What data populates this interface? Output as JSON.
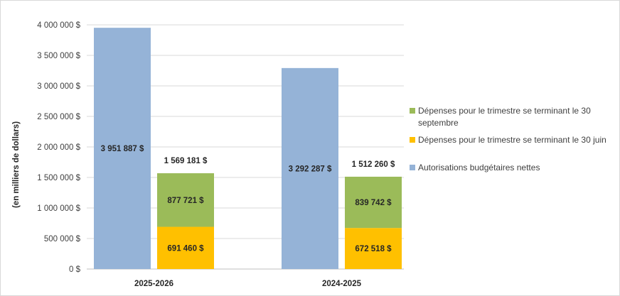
{
  "chart_data": {
    "type": "bar",
    "title": "",
    "xlabel": "",
    "ylabel": "(en milliers de dollars)",
    "ylim": [
      0,
      4000000
    ],
    "yticks": [
      0,
      500000,
      1000000,
      1500000,
      2000000,
      2500000,
      3000000,
      3500000,
      4000000
    ],
    "ytick_labels": [
      "0 $",
      "500 000 $",
      "1 000 000 $",
      "1 500 000 $",
      "2 000 000 $",
      "2 500 000 $",
      "3 000 000 $",
      "3 500 000 $",
      "4 000 000 $"
    ],
    "grid": true,
    "legend_position": "right",
    "categories": [
      "2025-2026",
      "2024-2025"
    ],
    "series": [
      {
        "name": "Autorisations budgétaires nettes",
        "stack": "autorisations",
        "color": "#95B3D7",
        "values": [
          3951887,
          3292287
        ],
        "labels": [
          "3 951 887 $",
          "3 292 287 $"
        ]
      },
      {
        "name": "Dépenses pour le trimestre se terminant le 30 juin",
        "stack": "depenses",
        "color": "#FFC000",
        "values": [
          691460,
          672518
        ],
        "labels": [
          "691 460 $",
          "672 518 $"
        ]
      },
      {
        "name": "Dépenses pour le trimestre se terminant le 30 septembre",
        "stack": "depenses",
        "color": "#9BBB59",
        "values": [
          877721,
          839742
        ],
        "labels": [
          "877 721 $",
          "839 742 $"
        ]
      }
    ],
    "totals": {
      "stack": "depenses",
      "values": [
        1569181,
        1512260
      ],
      "labels": [
        "1 569 181 $",
        "1 512 260 $"
      ]
    },
    "legend": [
      {
        "series_index": 2,
        "lines": [
          "Dépenses pour le trimestre se terminant le 30",
          "septembre"
        ]
      },
      {
        "series_index": 1,
        "lines": [
          "Dépenses pour le trimestre se terminant le 30 juin"
        ]
      },
      {
        "series_index": 0,
        "lines": [
          "Autorisations budgétaires nettes"
        ]
      }
    ]
  }
}
